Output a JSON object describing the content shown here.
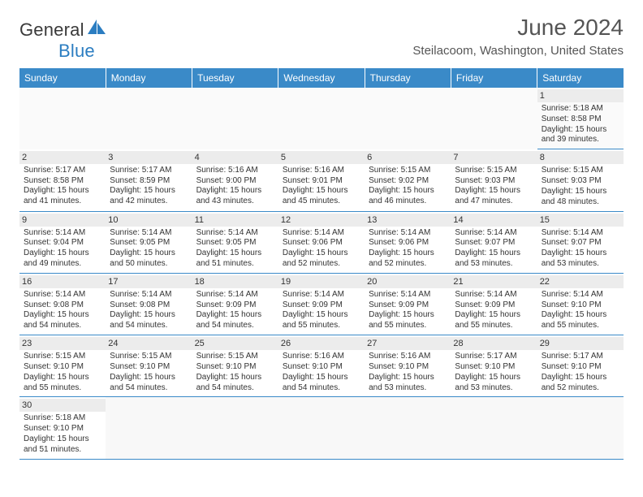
{
  "logo": {
    "textA": "General",
    "textB": "Blue",
    "sail_color": "#2b7dc1"
  },
  "title": "June 2024",
  "location": "Steilacoom, Washington, United States",
  "colors": {
    "header_bg": "#3a8ac8",
    "header_fg": "#ffffff",
    "daynum_bg": "#ececec",
    "border": "#3a8ac8",
    "text": "#333333"
  },
  "weekdays": [
    "Sunday",
    "Monday",
    "Tuesday",
    "Wednesday",
    "Thursday",
    "Friday",
    "Saturday"
  ],
  "weeks": [
    [
      null,
      null,
      null,
      null,
      null,
      null,
      {
        "n": "1",
        "sr": "Sunrise: 5:18 AM",
        "ss": "Sunset: 8:58 PM",
        "d1": "Daylight: 15 hours",
        "d2": "and 39 minutes."
      }
    ],
    [
      {
        "n": "2",
        "sr": "Sunrise: 5:17 AM",
        "ss": "Sunset: 8:58 PM",
        "d1": "Daylight: 15 hours",
        "d2": "and 41 minutes."
      },
      {
        "n": "3",
        "sr": "Sunrise: 5:17 AM",
        "ss": "Sunset: 8:59 PM",
        "d1": "Daylight: 15 hours",
        "d2": "and 42 minutes."
      },
      {
        "n": "4",
        "sr": "Sunrise: 5:16 AM",
        "ss": "Sunset: 9:00 PM",
        "d1": "Daylight: 15 hours",
        "d2": "and 43 minutes."
      },
      {
        "n": "5",
        "sr": "Sunrise: 5:16 AM",
        "ss": "Sunset: 9:01 PM",
        "d1": "Daylight: 15 hours",
        "d2": "and 45 minutes."
      },
      {
        "n": "6",
        "sr": "Sunrise: 5:15 AM",
        "ss": "Sunset: 9:02 PM",
        "d1": "Daylight: 15 hours",
        "d2": "and 46 minutes."
      },
      {
        "n": "7",
        "sr": "Sunrise: 5:15 AM",
        "ss": "Sunset: 9:03 PM",
        "d1": "Daylight: 15 hours",
        "d2": "and 47 minutes."
      },
      {
        "n": "8",
        "sr": "Sunrise: 5:15 AM",
        "ss": "Sunset: 9:03 PM",
        "d1": "Daylight: 15 hours",
        "d2": "and 48 minutes."
      }
    ],
    [
      {
        "n": "9",
        "sr": "Sunrise: 5:14 AM",
        "ss": "Sunset: 9:04 PM",
        "d1": "Daylight: 15 hours",
        "d2": "and 49 minutes."
      },
      {
        "n": "10",
        "sr": "Sunrise: 5:14 AM",
        "ss": "Sunset: 9:05 PM",
        "d1": "Daylight: 15 hours",
        "d2": "and 50 minutes."
      },
      {
        "n": "11",
        "sr": "Sunrise: 5:14 AM",
        "ss": "Sunset: 9:05 PM",
        "d1": "Daylight: 15 hours",
        "d2": "and 51 minutes."
      },
      {
        "n": "12",
        "sr": "Sunrise: 5:14 AM",
        "ss": "Sunset: 9:06 PM",
        "d1": "Daylight: 15 hours",
        "d2": "and 52 minutes."
      },
      {
        "n": "13",
        "sr": "Sunrise: 5:14 AM",
        "ss": "Sunset: 9:06 PM",
        "d1": "Daylight: 15 hours",
        "d2": "and 52 minutes."
      },
      {
        "n": "14",
        "sr": "Sunrise: 5:14 AM",
        "ss": "Sunset: 9:07 PM",
        "d1": "Daylight: 15 hours",
        "d2": "and 53 minutes."
      },
      {
        "n": "15",
        "sr": "Sunrise: 5:14 AM",
        "ss": "Sunset: 9:07 PM",
        "d1": "Daylight: 15 hours",
        "d2": "and 53 minutes."
      }
    ],
    [
      {
        "n": "16",
        "sr": "Sunrise: 5:14 AM",
        "ss": "Sunset: 9:08 PM",
        "d1": "Daylight: 15 hours",
        "d2": "and 54 minutes."
      },
      {
        "n": "17",
        "sr": "Sunrise: 5:14 AM",
        "ss": "Sunset: 9:08 PM",
        "d1": "Daylight: 15 hours",
        "d2": "and 54 minutes."
      },
      {
        "n": "18",
        "sr": "Sunrise: 5:14 AM",
        "ss": "Sunset: 9:09 PM",
        "d1": "Daylight: 15 hours",
        "d2": "and 54 minutes."
      },
      {
        "n": "19",
        "sr": "Sunrise: 5:14 AM",
        "ss": "Sunset: 9:09 PM",
        "d1": "Daylight: 15 hours",
        "d2": "and 55 minutes."
      },
      {
        "n": "20",
        "sr": "Sunrise: 5:14 AM",
        "ss": "Sunset: 9:09 PM",
        "d1": "Daylight: 15 hours",
        "d2": "and 55 minutes."
      },
      {
        "n": "21",
        "sr": "Sunrise: 5:14 AM",
        "ss": "Sunset: 9:09 PM",
        "d1": "Daylight: 15 hours",
        "d2": "and 55 minutes."
      },
      {
        "n": "22",
        "sr": "Sunrise: 5:14 AM",
        "ss": "Sunset: 9:10 PM",
        "d1": "Daylight: 15 hours",
        "d2": "and 55 minutes."
      }
    ],
    [
      {
        "n": "23",
        "sr": "Sunrise: 5:15 AM",
        "ss": "Sunset: 9:10 PM",
        "d1": "Daylight: 15 hours",
        "d2": "and 55 minutes."
      },
      {
        "n": "24",
        "sr": "Sunrise: 5:15 AM",
        "ss": "Sunset: 9:10 PM",
        "d1": "Daylight: 15 hours",
        "d2": "and 54 minutes."
      },
      {
        "n": "25",
        "sr": "Sunrise: 5:15 AM",
        "ss": "Sunset: 9:10 PM",
        "d1": "Daylight: 15 hours",
        "d2": "and 54 minutes."
      },
      {
        "n": "26",
        "sr": "Sunrise: 5:16 AM",
        "ss": "Sunset: 9:10 PM",
        "d1": "Daylight: 15 hours",
        "d2": "and 54 minutes."
      },
      {
        "n": "27",
        "sr": "Sunrise: 5:16 AM",
        "ss": "Sunset: 9:10 PM",
        "d1": "Daylight: 15 hours",
        "d2": "and 53 minutes."
      },
      {
        "n": "28",
        "sr": "Sunrise: 5:17 AM",
        "ss": "Sunset: 9:10 PM",
        "d1": "Daylight: 15 hours",
        "d2": "and 53 minutes."
      },
      {
        "n": "29",
        "sr": "Sunrise: 5:17 AM",
        "ss": "Sunset: 9:10 PM",
        "d1": "Daylight: 15 hours",
        "d2": "and 52 minutes."
      }
    ],
    [
      {
        "n": "30",
        "sr": "Sunrise: 5:18 AM",
        "ss": "Sunset: 9:10 PM",
        "d1": "Daylight: 15 hours",
        "d2": "and 51 minutes."
      },
      null,
      null,
      null,
      null,
      null,
      null
    ]
  ]
}
